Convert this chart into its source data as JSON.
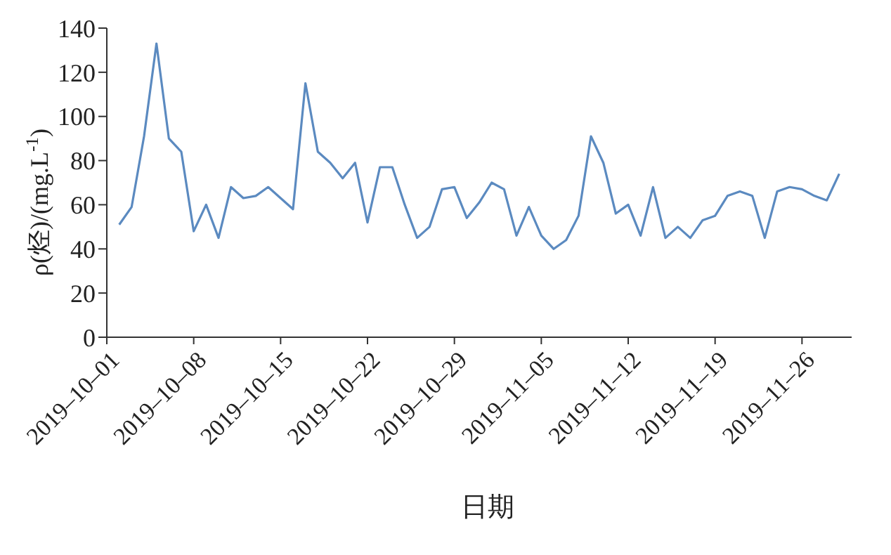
{
  "chart_data": {
    "type": "line",
    "xlabel": "日期",
    "ylabel": "ρ(烃)/(mg.L$^{-1}$)",
    "x": [
      "2019-10-02",
      "2019-10-03",
      "2019-10-04",
      "2019-10-05",
      "2019-10-06",
      "2019-10-07",
      "2019-10-08",
      "2019-10-09",
      "2019-10-10",
      "2019-10-11",
      "2019-10-12",
      "2019-10-13",
      "2019-10-14",
      "2019-10-15",
      "2019-10-16",
      "2019-10-17",
      "2019-10-18",
      "2019-10-19",
      "2019-10-20",
      "2019-10-21",
      "2019-10-22",
      "2019-10-23",
      "2019-10-24",
      "2019-10-25",
      "2019-10-26",
      "2019-10-27",
      "2019-10-28",
      "2019-10-29",
      "2019-10-30",
      "2019-10-31",
      "2019-11-01",
      "2019-11-02",
      "2019-11-03",
      "2019-11-04",
      "2019-11-05",
      "2019-11-06",
      "2019-11-07",
      "2019-11-08",
      "2019-11-09",
      "2019-11-10",
      "2019-11-11",
      "2019-11-12",
      "2019-11-13",
      "2019-11-14",
      "2019-11-15",
      "2019-11-16",
      "2019-11-17",
      "2019-11-18",
      "2019-11-19",
      "2019-11-20",
      "2019-11-21",
      "2019-11-22",
      "2019-11-23",
      "2019-11-24",
      "2019-11-25",
      "2019-11-26",
      "2019-11-27",
      "2019-11-28",
      "2019-11-29"
    ],
    "series": [
      {
        "color": "#5b8ac0",
        "values": [
          51,
          59,
          91,
          133,
          90,
          84,
          48,
          60,
          45,
          68,
          63,
          64,
          68,
          63,
          58,
          115,
          84,
          79,
          72,
          79,
          52,
          77,
          77,
          60,
          45,
          50,
          67,
          68,
          54,
          61,
          70,
          67,
          46,
          59,
          46,
          40,
          44,
          55,
          91,
          79,
          56,
          60,
          46,
          68,
          45,
          50,
          45,
          53,
          55,
          64,
          66,
          64,
          45,
          66,
          68,
          67,
          64,
          62,
          74
        ]
      }
    ],
    "xlim": [
      "2019-10-01",
      "2019-11-30"
    ],
    "xticks": [
      {
        "value": "2019-10-01",
        "label": "2019–10–01"
      },
      {
        "value": "2019-10-08",
        "label": "2019–10–08"
      },
      {
        "value": "2019-10-15",
        "label": "2019–10–15"
      },
      {
        "value": "2019-10-22",
        "label": "2019–10–22"
      },
      {
        "value": "2019-10-29",
        "label": "2019–10–29"
      },
      {
        "value": "2019-11-05",
        "label": "2019–11–05"
      },
      {
        "value": "2019-11-12",
        "label": "2019–11–12"
      },
      {
        "value": "2019-11-19",
        "label": "2019–11–19"
      },
      {
        "value": "2019-11-26",
        "label": "2019–11–26"
      }
    ],
    "ylim": [
      0,
      140
    ],
    "yticks": [
      0,
      20,
      40,
      60,
      80,
      100,
      120,
      140
    ],
    "grid": false,
    "legend": false,
    "marker": "none",
    "line_style": "solid"
  }
}
